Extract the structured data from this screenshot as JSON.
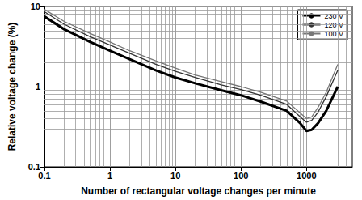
{
  "chart_data": {
    "type": "line",
    "x_label": "Number of rectangular voltage changes per minute",
    "y_label": "Relative voltage change (%)",
    "x": [
      0.1,
      0.2,
      0.5,
      1,
      2,
      5,
      10,
      20,
      50,
      100,
      200,
      500,
      800,
      1000,
      1200,
      1500,
      2000,
      3000
    ],
    "series": [
      {
        "name": "230 V",
        "color": "#000000",
        "values": [
          7.5,
          5.2,
          3.6,
          2.8,
          2.2,
          1.6,
          1.3,
          1.1,
          0.9,
          0.78,
          0.65,
          0.5,
          0.35,
          0.28,
          0.29,
          0.35,
          0.5,
          1.0
        ]
      },
      {
        "name": "120 V",
        "color": "#333333",
        "values": [
          8.6,
          6.0,
          4.2,
          3.3,
          2.6,
          1.9,
          1.55,
          1.3,
          1.05,
          0.92,
          0.78,
          0.6,
          0.42,
          0.36,
          0.38,
          0.48,
          0.75,
          1.6
        ]
      },
      {
        "name": "100 V",
        "color": "#777777",
        "values": [
          9.2,
          6.5,
          4.6,
          3.6,
          2.8,
          2.1,
          1.7,
          1.4,
          1.15,
          1.0,
          0.85,
          0.66,
          0.47,
          0.4,
          0.42,
          0.55,
          0.85,
          1.9
        ]
      }
    ],
    "xlim": [
      0.1,
      5000
    ],
    "xticks": [
      0.1,
      1,
      10,
      100,
      1000
    ],
    "ylim": [
      0.1,
      10
    ],
    "yticks": [
      0.1,
      1,
      10
    ],
    "log": true,
    "grid": true,
    "legend": "upper right"
  }
}
